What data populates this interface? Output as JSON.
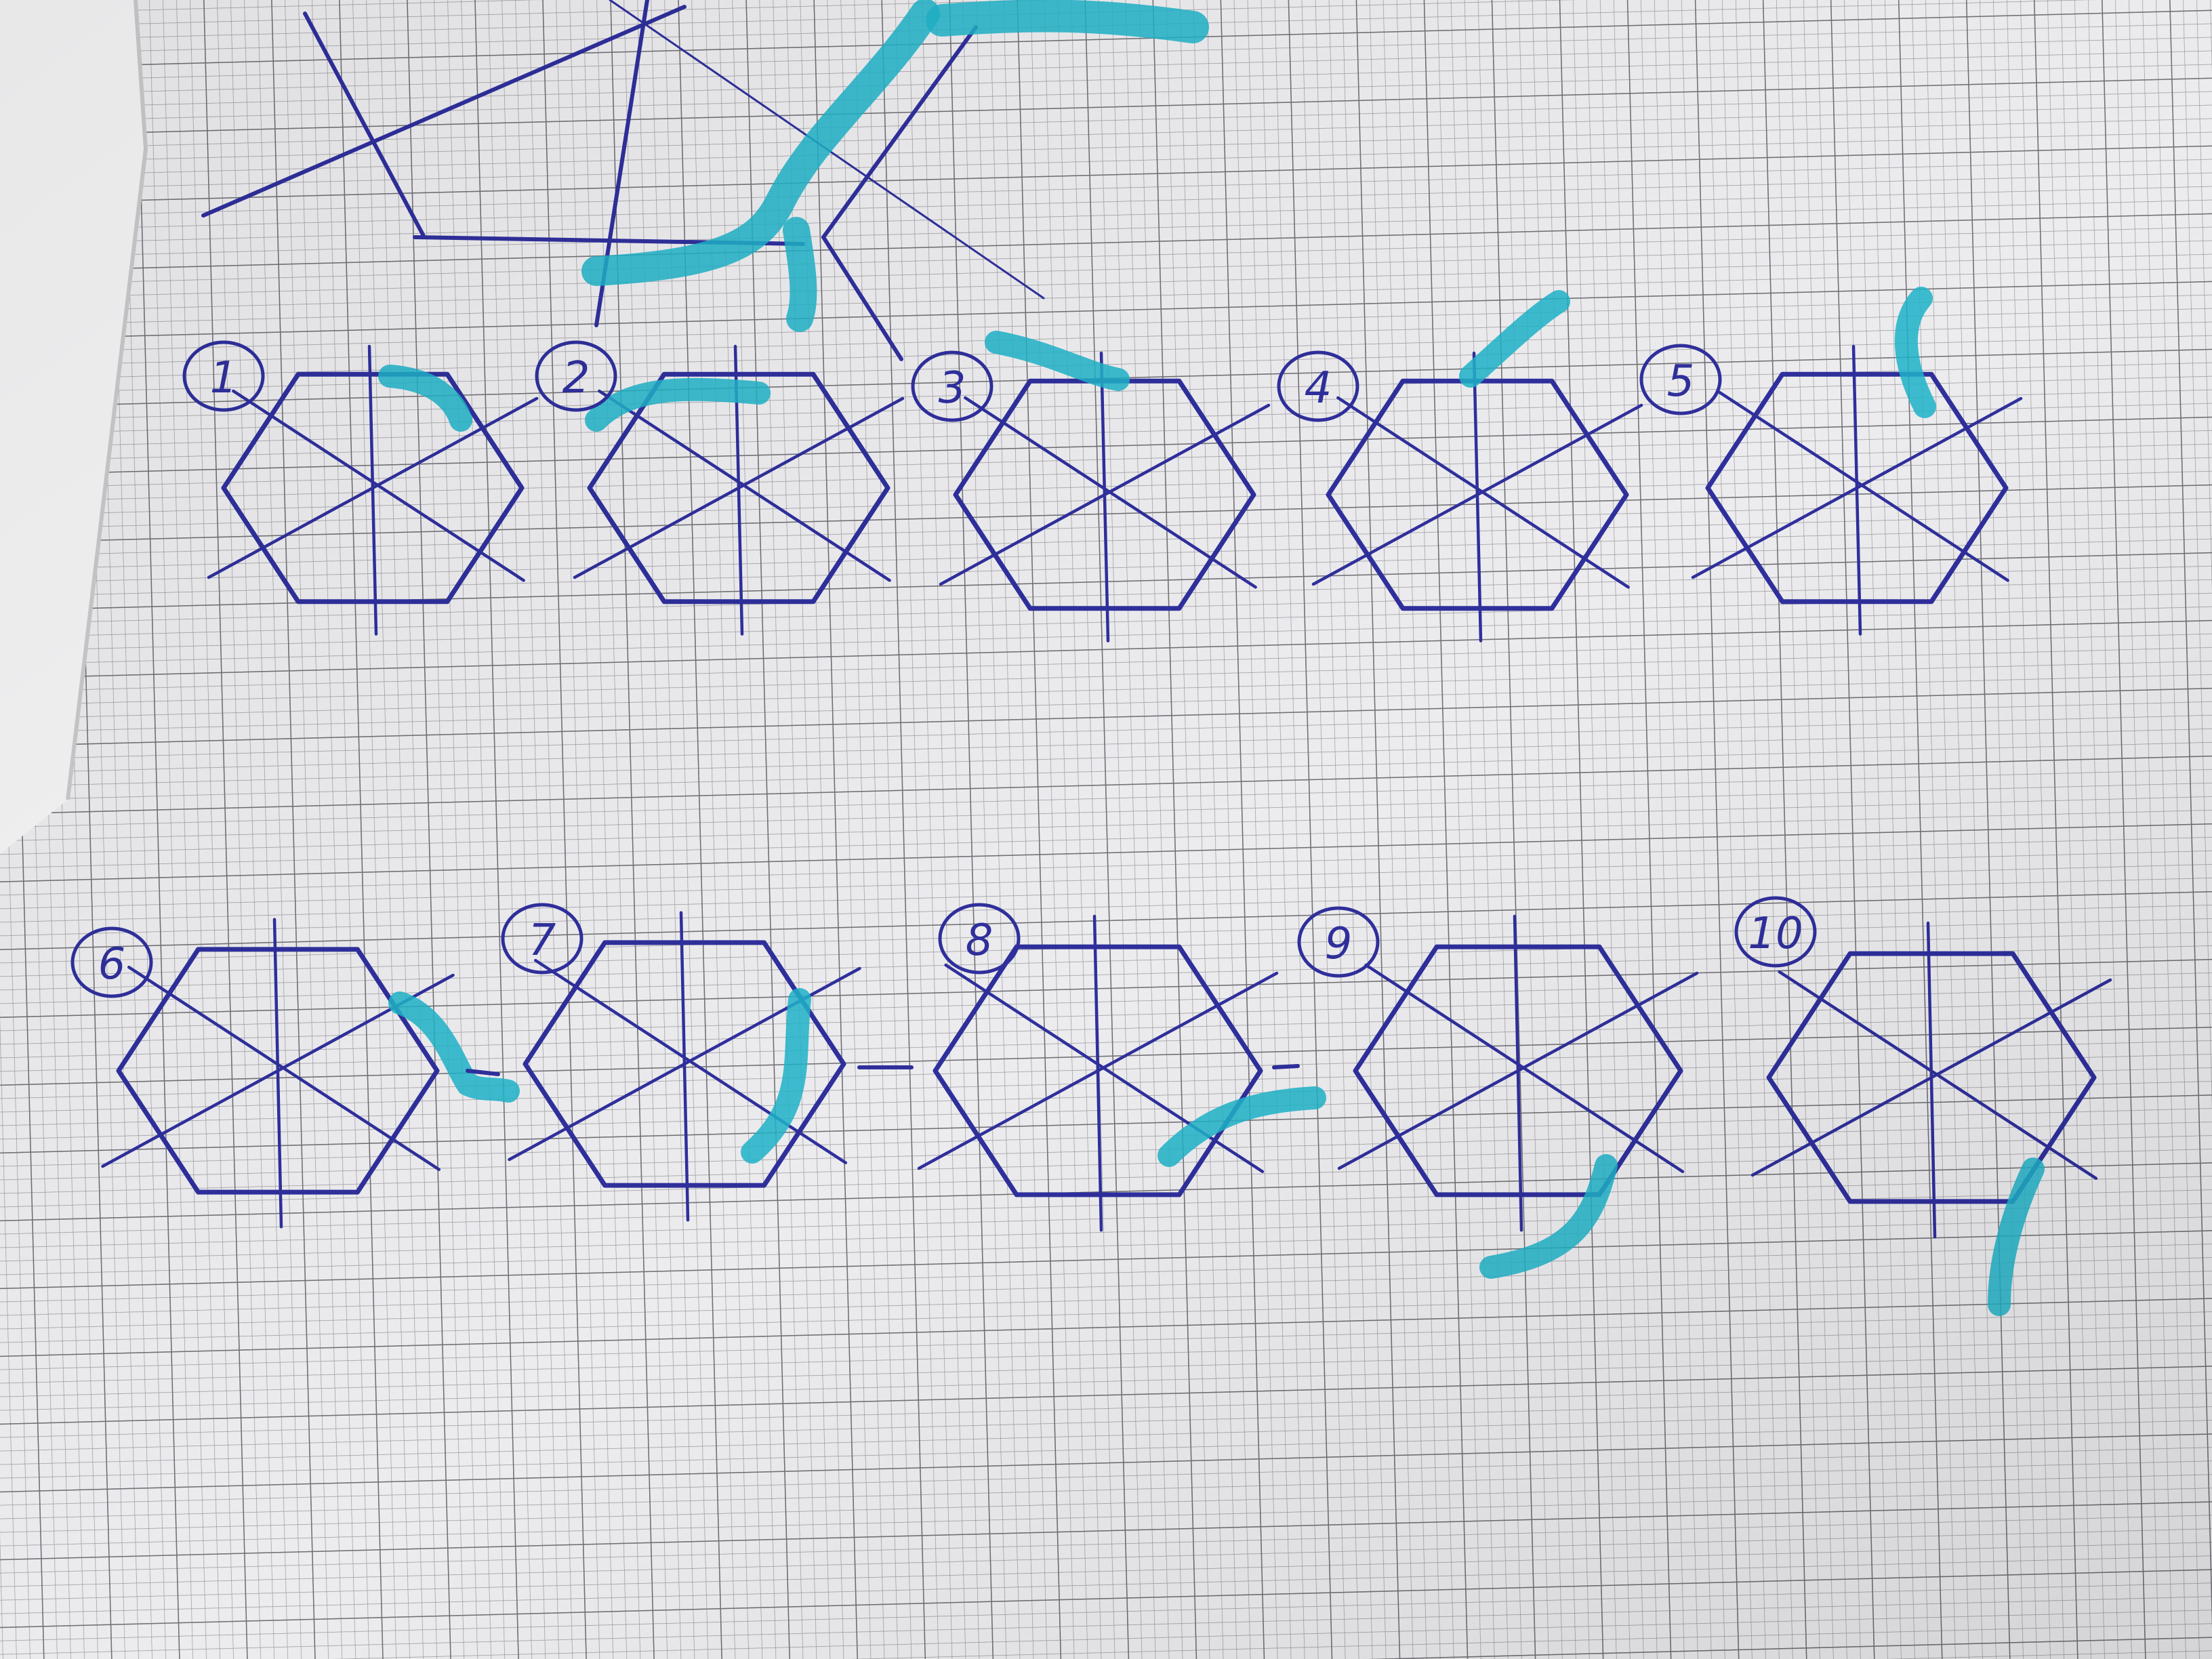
{
  "photo": {
    "subject": "hand-drawn sketch on graph paper",
    "paper_color": "#ececef",
    "fine_grid_color": "#9a9a9e",
    "major_grid_color": "#6f6f74",
    "ink_color": "#2f2f9c",
    "highlighter_color": "#1fb3c8"
  },
  "diagrams": [
    {
      "label": "1"
    },
    {
      "label": "2"
    },
    {
      "label": "3"
    },
    {
      "label": "4"
    },
    {
      "label": "5"
    },
    {
      "label": "6"
    },
    {
      "label": "7"
    },
    {
      "label": "8"
    },
    {
      "label": "9"
    },
    {
      "label": "10"
    }
  ]
}
